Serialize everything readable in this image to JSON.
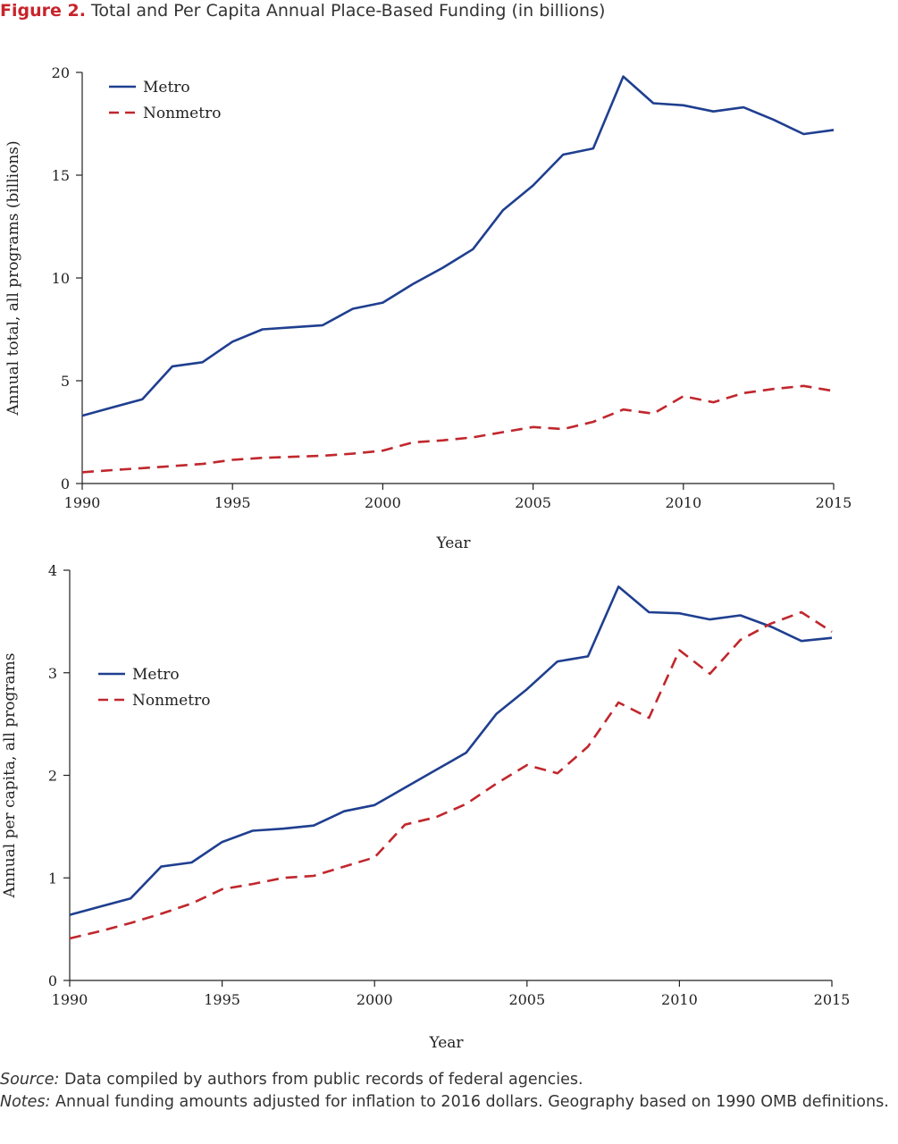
{
  "figure": {
    "label": "Figure 2.",
    "title": "Total and Per Capita Annual Place-Based Funding (in billions)"
  },
  "colors": {
    "metro": "#1f3f8f",
    "nonmetro": "#c0272d",
    "title_accent": "#c8242b"
  },
  "chart_data": [
    {
      "type": "line",
      "xlabel": "Year",
      "ylabel": "Annual total, all programs (billions)",
      "xlim": [
        1990,
        2015
      ],
      "ylim": [
        0,
        20
      ],
      "xticks": [
        1990,
        1995,
        2000,
        2005,
        2010,
        2015
      ],
      "yticks": [
        0,
        5,
        10,
        15,
        20
      ],
      "grid": false,
      "legend_position": "top-left",
      "x": [
        1990,
        1991,
        1992,
        1993,
        1994,
        1995,
        1996,
        1997,
        1998,
        1999,
        2000,
        2001,
        2002,
        2003,
        2004,
        2005,
        2006,
        2007,
        2008,
        2009,
        2010,
        2011,
        2012,
        2013,
        2014,
        2015
      ],
      "series": [
        {
          "name": "Metro",
          "style": "solid",
          "values": [
            3.3,
            3.7,
            4.1,
            5.7,
            5.9,
            6.9,
            7.5,
            7.6,
            7.7,
            8.5,
            8.8,
            9.7,
            10.5,
            11.4,
            13.3,
            14.5,
            16.0,
            16.3,
            19.8,
            18.5,
            18.4,
            18.1,
            18.3,
            17.7,
            17.0,
            17.2
          ]
        },
        {
          "name": "Nonmetro",
          "style": "dashed",
          "values": [
            0.55,
            0.65,
            0.75,
            0.85,
            0.95,
            1.15,
            1.25,
            1.3,
            1.35,
            1.45,
            1.6,
            2.0,
            2.1,
            2.25,
            2.5,
            2.75,
            2.65,
            3.0,
            3.6,
            3.4,
            4.25,
            3.95,
            4.4,
            4.6,
            4.75,
            4.5
          ]
        }
      ]
    },
    {
      "type": "line",
      "xlabel": "Year",
      "ylabel": "Annual per capita, all programs",
      "xlim": [
        1990,
        2015
      ],
      "ylim": [
        0,
        4
      ],
      "xticks": [
        1990,
        1995,
        2000,
        2005,
        2010,
        2015
      ],
      "yticks": [
        0,
        1,
        2,
        3,
        4
      ],
      "grid": false,
      "legend_position": "middle-left",
      "x": [
        1990,
        1991,
        1992,
        1993,
        1994,
        1995,
        1996,
        1997,
        1998,
        1999,
        2000,
        2001,
        2002,
        2003,
        2004,
        2005,
        2006,
        2007,
        2008,
        2009,
        2010,
        2011,
        2012,
        2013,
        2014,
        2015
      ],
      "series": [
        {
          "name": "Metro",
          "style": "solid",
          "values": [
            0.64,
            0.72,
            0.8,
            1.11,
            1.15,
            1.35,
            1.46,
            1.48,
            1.51,
            1.65,
            1.71,
            1.88,
            2.05,
            2.22,
            2.6,
            2.84,
            3.11,
            3.16,
            3.84,
            3.59,
            3.58,
            3.52,
            3.56,
            3.45,
            3.31,
            3.34
          ]
        },
        {
          "name": "Nonmetro",
          "style": "dashed",
          "values": [
            0.41,
            0.48,
            0.56,
            0.65,
            0.75,
            0.89,
            0.94,
            1.0,
            1.02,
            1.11,
            1.2,
            1.52,
            1.59,
            1.72,
            1.92,
            2.1,
            2.02,
            2.28,
            2.71,
            2.56,
            3.22,
            2.99,
            3.32,
            3.48,
            3.59,
            3.4
          ]
        }
      ]
    }
  ],
  "footer": {
    "source_label": "Source:",
    "source_text": " Data compiled by authors from public records of federal agencies.",
    "notes_label": "Notes:",
    "notes_text": " Annual funding amounts adjusted for inflation to 2016 dollars. Geography based on 1990 OMB definitions."
  }
}
